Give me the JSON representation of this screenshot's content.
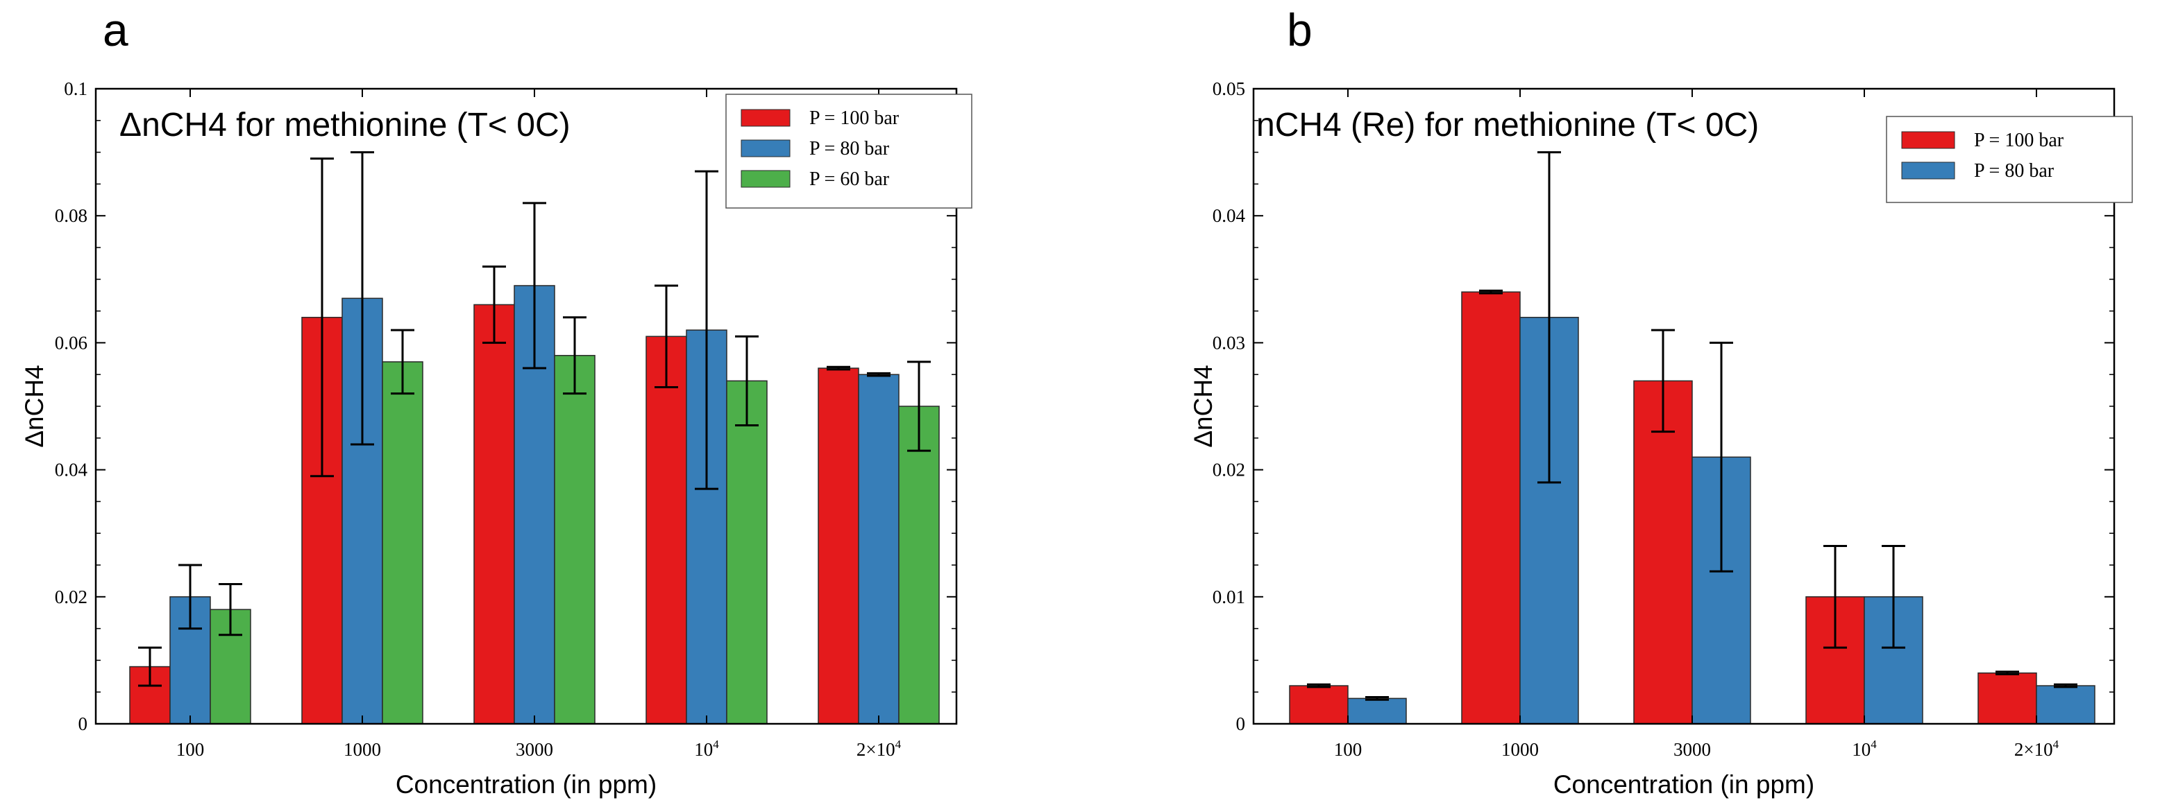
{
  "chart_data": [
    {
      "panel_label": "a",
      "type": "bar",
      "title": "ΔnCH4 for methionine (T< 0C)",
      "xlabel": "Concentration (in ppm)",
      "ylabel": "ΔnCH4",
      "ylim": [
        0,
        0.1
      ],
      "yticks": [
        0,
        0.02,
        0.04,
        0.06,
        0.08,
        0.1
      ],
      "ytick_labels": [
        "0",
        "0.02",
        "0.04",
        "0.06",
        "0.08",
        "0.1"
      ],
      "categories": [
        {
          "base": "100",
          "sup": ""
        },
        {
          "base": "1000",
          "sup": ""
        },
        {
          "base": "3000",
          "sup": ""
        },
        {
          "base": "10",
          "sup": "4"
        },
        {
          "base": "2×10",
          "sup": "4"
        }
      ],
      "series": [
        {
          "name": "P = 100 bar",
          "color": "#e41a1c",
          "values": [
            0.009,
            0.064,
            0.066,
            0.061,
            0.056
          ],
          "errors": [
            0.003,
            0.025,
            0.006,
            0.008,
            0.0002
          ]
        },
        {
          "name": "P = 80 bar",
          "color": "#377eb8",
          "values": [
            0.02,
            0.067,
            0.069,
            0.062,
            0.055
          ],
          "errors": [
            0.005,
            0.023,
            0.013,
            0.025,
            0.0002
          ]
        },
        {
          "name": "P = 60 bar",
          "color": "#4daf4a",
          "values": [
            0.018,
            0.057,
            0.058,
            0.054,
            0.05
          ],
          "errors": [
            0.004,
            0.005,
            0.006,
            0.007,
            0.007
          ]
        }
      ],
      "legend_position": "top-right"
    },
    {
      "panel_label": "b",
      "type": "bar",
      "title": "nCH4 (Re) for methionine (T< 0C)",
      "xlabel": "Concentration (in ppm)",
      "ylabel": "ΔnCH4",
      "ylim": [
        0,
        0.05
      ],
      "yticks": [
        0,
        0.01,
        0.02,
        0.03,
        0.04,
        0.05
      ],
      "ytick_labels": [
        "0",
        "0.01",
        "0.02",
        "0.03",
        "0.04",
        "0.05"
      ],
      "categories": [
        {
          "base": "100",
          "sup": ""
        },
        {
          "base": "1000",
          "sup": ""
        },
        {
          "base": "3000",
          "sup": ""
        },
        {
          "base": "10",
          "sup": "4"
        },
        {
          "base": "2×10",
          "sup": "4"
        }
      ],
      "series": [
        {
          "name": "P = 100 bar",
          "color": "#e41a1c",
          "values": [
            0.003,
            0.034,
            0.027,
            0.01,
            0.004
          ],
          "errors": [
            0.0001,
            0.0001,
            0.004,
            0.004,
            0.0001
          ]
        },
        {
          "name": "P = 80 bar",
          "color": "#377eb8",
          "values": [
            0.002,
            0.032,
            0.021,
            0.01,
            0.003
          ],
          "errors": [
            0.0001,
            0.013,
            0.009,
            0.004,
            0.0001
          ]
        }
      ],
      "legend_position": "top-right"
    }
  ]
}
